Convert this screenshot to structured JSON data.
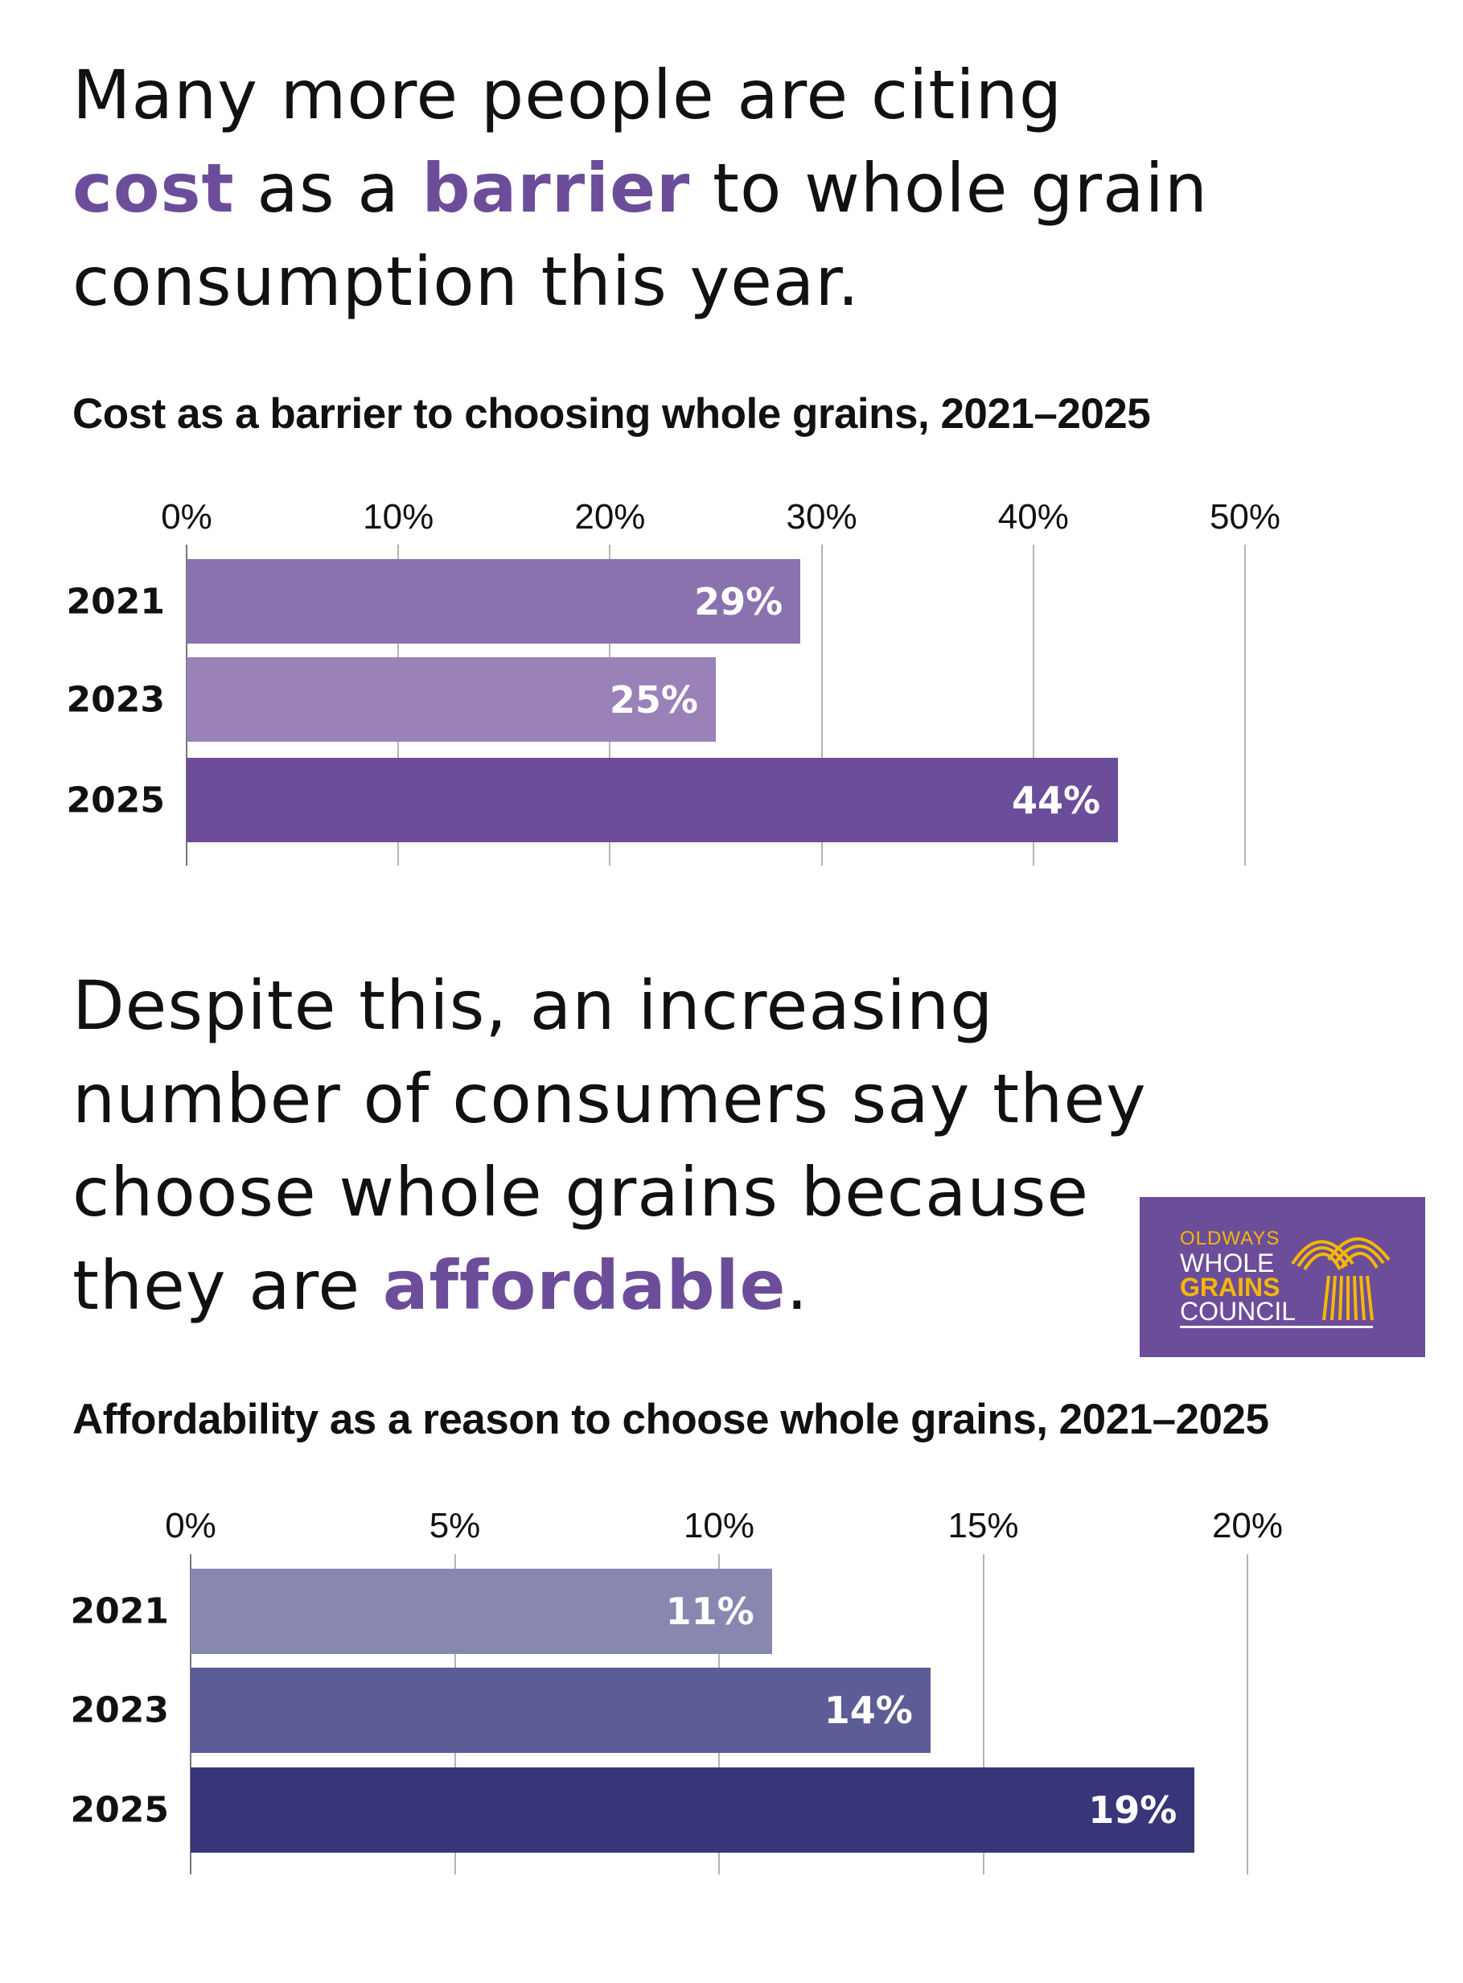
{
  "headline1": {
    "line1": "Many more people are citing",
    "line2_a": "cost",
    "line2_b": " as a ",
    "line2_c": "barrier",
    "line2_d": " to whole grain",
    "line3": "consumption this year."
  },
  "headline2": {
    "line1": "Despite this, an increasing",
    "line2": "number of consumers say they",
    "line3": "choose whole grains because",
    "line4_a": "they are ",
    "line4_b": "affordable",
    "line4_c": "."
  },
  "logo": {
    "line1": "OLDWAYS",
    "line2": "WHOLE",
    "line3": "GRAINS",
    "line4": "COUNCIL",
    "bg": "#6c4d9a",
    "gold": "#f5b800"
  },
  "accent_color": "#6c4d9a",
  "chart_data": [
    {
      "type": "bar",
      "orientation": "horizontal",
      "title": "Cost as a barrier to choosing whole grains, 2021–2025",
      "categories": [
        "2021",
        "2023",
        "2025"
      ],
      "values": [
        29,
        25,
        44
      ],
      "value_labels": [
        "29%",
        "25%",
        "44%"
      ],
      "colors": [
        "#8a72ae",
        "#9a81b8",
        "#6c4d9a"
      ],
      "xlim": [
        0,
        50
      ],
      "ticks": [
        "0%",
        "10%",
        "20%",
        "30%",
        "40%",
        "50%"
      ],
      "grid": true
    },
    {
      "type": "bar",
      "orientation": "horizontal",
      "title": "Affordability as a reason to choose whole grains, 2021–2025",
      "categories": [
        "2021",
        "2023",
        "2025"
      ],
      "values": [
        11,
        14,
        19
      ],
      "value_labels": [
        "11%",
        "14%",
        "19%"
      ],
      "colors": [
        "#8787b0",
        "#5c5c96",
        "#363679"
      ],
      "xlim": [
        0,
        20
      ],
      "ticks": [
        "0%",
        "5%",
        "10%",
        "15%",
        "20%"
      ],
      "grid": true
    }
  ]
}
